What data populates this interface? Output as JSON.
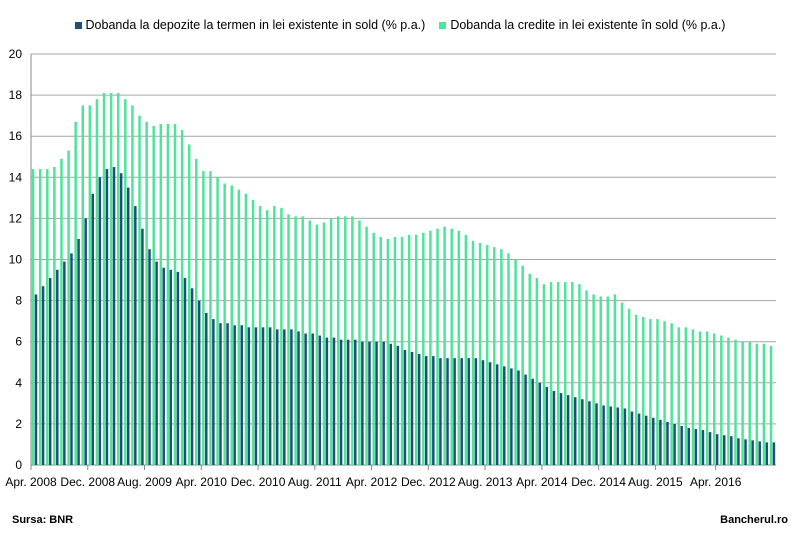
{
  "chart_data": {
    "type": "bar",
    "title": "",
    "xlabel": "",
    "ylabel": "",
    "ylim": [
      0,
      20
    ],
    "yticks": [
      0,
      2,
      4,
      6,
      8,
      10,
      12,
      14,
      16,
      18,
      20
    ],
    "grid": true,
    "legend_position": "top",
    "x_tick_labels": [
      "Apr. 2008",
      "Dec. 2008",
      "Aug. 2009",
      "Apr. 2010",
      "Dec. 2010",
      "Aug. 2011",
      "Apr. 2012",
      "Dec. 2012",
      "Aug. 2013",
      "Apr. 2014",
      "Dec. 2014",
      "Aug. 2015",
      "Apr. 2016"
    ],
    "months_start": "Apr. 2008",
    "months_end": "Apr. 2016",
    "series": [
      {
        "name": "Dobanda la depozite la termen in lei existente in sold (% p.a.)",
        "color": "#1f4e79",
        "values": [
          8.3,
          8.7,
          9.1,
          9.5,
          9.9,
          10.3,
          11.0,
          12.0,
          13.2,
          14.0,
          14.4,
          14.5,
          14.2,
          13.5,
          12.6,
          11.5,
          10.5,
          9.9,
          9.6,
          9.5,
          9.4,
          9.1,
          8.6,
          8.0,
          7.4,
          7.1,
          6.9,
          6.9,
          6.8,
          6.8,
          6.7,
          6.7,
          6.7,
          6.7,
          6.6,
          6.6,
          6.6,
          6.5,
          6.4,
          6.4,
          6.3,
          6.2,
          6.2,
          6.1,
          6.1,
          6.1,
          6.0,
          6.0,
          6.0,
          6.0,
          5.9,
          5.8,
          5.6,
          5.5,
          5.4,
          5.3,
          5.3,
          5.2,
          5.2,
          5.2,
          5.2,
          5.2,
          5.2,
          5.1,
          5.0,
          4.9,
          4.8,
          4.7,
          4.6,
          4.4,
          4.2,
          4.0,
          3.8,
          3.6,
          3.5,
          3.4,
          3.3,
          3.2,
          3.1,
          3.0,
          2.9,
          2.85,
          2.8,
          2.75,
          2.6,
          2.5,
          2.4,
          2.3,
          2.2,
          2.1,
          2.0,
          1.9,
          1.8,
          1.75,
          1.7,
          1.6,
          1.5,
          1.45,
          1.4,
          1.3,
          1.25,
          1.2,
          1.15,
          1.1,
          1.1
        ]
      },
      {
        "name": "Dobanda la credite in lei existente în sold (% p.a.)",
        "color": "#4ee49a",
        "values": [
          14.4,
          14.4,
          14.4,
          14.5,
          14.9,
          15.3,
          16.7,
          17.5,
          17.5,
          17.8,
          18.1,
          18.1,
          18.1,
          17.8,
          17.5,
          17.0,
          16.7,
          16.5,
          16.6,
          16.6,
          16.6,
          16.3,
          15.6,
          14.9,
          14.3,
          14.3,
          14.0,
          13.7,
          13.6,
          13.4,
          13.2,
          12.9,
          12.6,
          12.4,
          12.6,
          12.5,
          12.2,
          12.1,
          12.1,
          11.9,
          11.7,
          11.8,
          12.0,
          12.1,
          12.1,
          12.1,
          11.9,
          11.6,
          11.3,
          11.1,
          11.0,
          11.1,
          11.1,
          11.2,
          11.2,
          11.3,
          11.4,
          11.5,
          11.6,
          11.5,
          11.4,
          11.2,
          10.9,
          10.8,
          10.7,
          10.6,
          10.5,
          10.3,
          10.0,
          9.7,
          9.3,
          9.1,
          8.8,
          8.9,
          8.9,
          8.9,
          8.9,
          8.8,
          8.5,
          8.3,
          8.2,
          8.2,
          8.3,
          7.9,
          7.6,
          7.3,
          7.2,
          7.1,
          7.1,
          7.0,
          6.9,
          6.7,
          6.7,
          6.6,
          6.5,
          6.5,
          6.4,
          6.3,
          6.2,
          6.1,
          6.0,
          6.0,
          5.9,
          5.9,
          5.8
        ]
      }
    ]
  },
  "footer": {
    "source": "Sursa: BNR",
    "brand": "Bancherul.ro"
  }
}
